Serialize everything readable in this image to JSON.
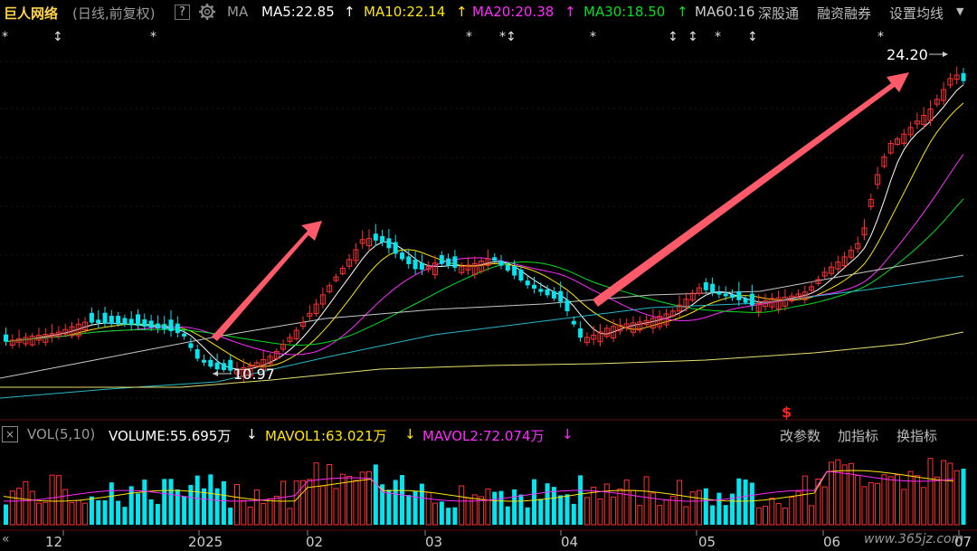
{
  "header": {
    "stock_name": "巨人网络",
    "period": "(日线,前复权)",
    "help": "?",
    "ma_label": "MA",
    "ma5": "MA5:22.85",
    "ma5_arrow": "↑",
    "ma10": "MA10:22.14",
    "ma10_arrow": "↑",
    "ma20": "MA20:20.38",
    "ma20_arrow": "↑",
    "ma30": "MA30:18.50",
    "ma30_arrow": "↑",
    "ma60": "MA60:16",
    "tool_1": "深股通",
    "tool_2": "融资融券",
    "tool_3": "设置均线",
    "tool_menu": "▼"
  },
  "price_chart": {
    "high_label": "24.20",
    "low_label": "10.97",
    "markers": [
      "*",
      "↕",
      "*",
      "*",
      "*↕",
      "*",
      "↕",
      "↕",
      "*",
      "↕",
      "*"
    ],
    "dollar_marker": "$"
  },
  "volume_panel": {
    "close": "×",
    "label": "VOL(5,10)",
    "volume": "VOLUME:55.695万",
    "volume_arrow": "↓",
    "mavol1": "MAVOL1:63.021万",
    "mavol1_arrow": "↓",
    "mavol2": "MAVOL2:72.074万",
    "mavol2_arrow": "↓",
    "btn_params": "改参数",
    "btn_add": "加指标",
    "btn_switch": "换指标"
  },
  "x_axis": {
    "scroll": "«",
    "ticks": [
      "12",
      "2025",
      "02",
      "03",
      "04",
      "05",
      "06",
      "07"
    ]
  },
  "watermark": "www.365jz.com",
  "colors": {
    "up": "#ff3030",
    "down": "#00e5f0",
    "ma5": "#ffffff",
    "ma10": "#ffe600",
    "ma20": "#ff2bff",
    "ma30": "#00e020",
    "ma60": "#c8c8c8",
    "arrow": "#ff5a6a"
  },
  "icons": {
    "settings": "gear-icon"
  }
}
